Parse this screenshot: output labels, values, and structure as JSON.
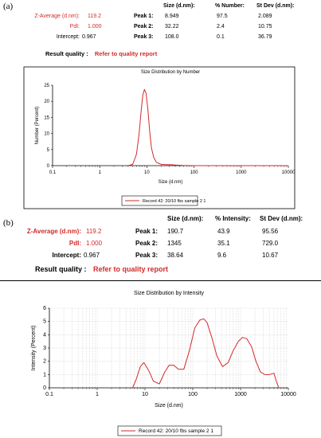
{
  "panels": [
    {
      "label": "(a)",
      "summary": {
        "z_average_label": "Z-Average (d.nm):",
        "z_average_value": "119.2",
        "pdi_label": "PdI:",
        "pdi_value": "1.000",
        "intercept_label": "Intercept:",
        "intercept_value": "0.967",
        "result_quality_label": "Result quality :",
        "result_quality_value": "Refer to quality report"
      },
      "peaks_table": {
        "headers": [
          "Size (d.nm):",
          "% Number:",
          "St Dev (d.nm):"
        ],
        "rows": [
          {
            "label": "Peak 1:",
            "size": "8.949",
            "percent": "97.5",
            "stdev": "2.089"
          },
          {
            "label": "Peak 2:",
            "size": "32.22",
            "percent": "2.4",
            "stdev": "10.75"
          },
          {
            "label": "Peak 3:",
            "size": "108.0",
            "percent": "0.1",
            "stdev": "36.79"
          }
        ]
      }
    },
    {
      "label": "(b)",
      "summary": {
        "z_average_label": "Z-Average (d.nm):",
        "z_average_value": "119.2",
        "pdi_label": "PdI:",
        "pdi_value": "1.000",
        "intercept_label": "Intercept:",
        "intercept_value": "0.967",
        "result_quality_label": "Result quality :",
        "result_quality_value": "Refer to quality report"
      },
      "peaks_table": {
        "headers": [
          "Size (d.nm):",
          "% Intensity:",
          "St Dev (d.nm):"
        ],
        "rows": [
          {
            "label": "Peak 1:",
            "size": "190.7",
            "percent": "43.9",
            "stdev": "95.56"
          },
          {
            "label": "Peak 2:",
            "size": "1345",
            "percent": "35.1",
            "stdev": "729.0"
          },
          {
            "label": "Peak 3:",
            "size": "38.64",
            "percent": "9.6",
            "stdev": "10.67"
          }
        ]
      }
    }
  ],
  "chart_data": [
    {
      "type": "line",
      "title": "Size Distribution by Number",
      "xlabel": "Size (d.nm)",
      "ylabel": "Number (Percent)",
      "xscale": "log",
      "xlim": [
        0.1,
        10000
      ],
      "ylim": [
        0,
        25
      ],
      "xticks": [
        0.1,
        1,
        10,
        100,
        1000,
        10000
      ],
      "xtick_labels": [
        "0.1",
        "1",
        "10",
        "100",
        "1000",
        "10000"
      ],
      "yticks": [
        0,
        5,
        10,
        15,
        20,
        25
      ],
      "ytick_labels": [
        "0",
        "5",
        "10",
        "15",
        "20",
        "25"
      ],
      "grid": false,
      "legend_placement": "bottom-center",
      "series": [
        {
          "name": "Record 42: 20/10 fbs sample 2 1",
          "color": "#d42a2a",
          "x": [
            4.0,
            5.0,
            6.0,
            6.8,
            7.5,
            8.2,
            8.9,
            9.6,
            10.5,
            11.5,
            12.5,
            14.0,
            16.0,
            20.0,
            25.0,
            32.0,
            40.0,
            60.0,
            100.0,
            10000.0
          ],
          "y": [
            0,
            0.4,
            3.5,
            9.5,
            16.5,
            22.0,
            23.7,
            22.5,
            17.5,
            10.5,
            5.5,
            2.5,
            1.0,
            0.4,
            0.3,
            0.3,
            0.2,
            0.05,
            0,
            0
          ]
        }
      ]
    },
    {
      "type": "line",
      "title": "Size Distribution by Intensity",
      "xlabel": "Size (d.nm)",
      "ylabel": "Intensity (Percent)",
      "xscale": "log",
      "xlim": [
        0.1,
        10000
      ],
      "ylim": [
        0,
        6
      ],
      "xticks": [
        0.1,
        1,
        10,
        100,
        1000,
        10000
      ],
      "xtick_labels": [
        "0.1",
        "1",
        "10",
        "100",
        "1000",
        "10000"
      ],
      "yticks": [
        0,
        1,
        2,
        3,
        4,
        5,
        6
      ],
      "ytick_labels": [
        "0",
        "1",
        "2",
        "3",
        "4",
        "5",
        "6"
      ],
      "grid": true,
      "legend_placement": "bottom-center",
      "series": [
        {
          "name": "Record 42: 20/10 fbs sample 2 1",
          "color": "#d42a2a",
          "x": [
            5.5,
            6.5,
            8.0,
            9.5,
            12.0,
            15.0,
            20.0,
            26.0,
            32.0,
            40.0,
            50.0,
            65.0,
            85.0,
            110.0,
            140.0,
            170.0,
            200.0,
            250.0,
            320.0,
            420.0,
            550.0,
            700.0,
            900.0,
            1100.0,
            1350.0,
            1700.0,
            2100.0,
            2600.0,
            3200.0,
            4000.0,
            5000.0,
            5600.0,
            6300.0
          ],
          "y": [
            0,
            0.6,
            1.6,
            1.9,
            1.3,
            0.5,
            0.3,
            1.2,
            1.7,
            1.7,
            1.4,
            1.4,
            2.8,
            4.5,
            5.1,
            5.2,
            4.9,
            3.8,
            2.4,
            1.6,
            1.9,
            2.8,
            3.5,
            3.8,
            3.7,
            3.1,
            2.0,
            1.2,
            1.0,
            1.0,
            1.1,
            0.5,
            0
          ]
        }
      ]
    }
  ]
}
